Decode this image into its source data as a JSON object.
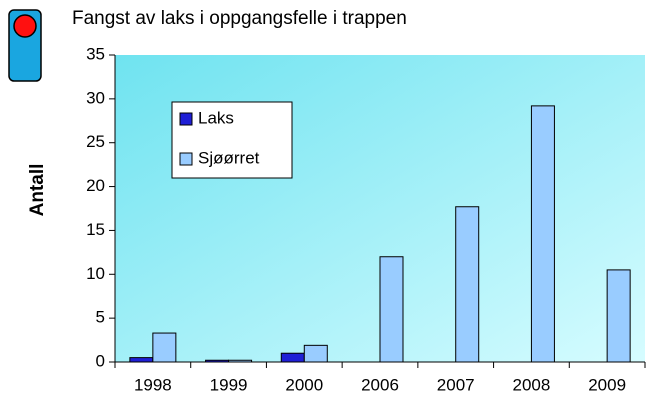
{
  "chart_data": {
    "type": "bar",
    "title": "Fangst av laks i oppgangsfelle i trappen",
    "y_label": "Antall",
    "categories": [
      "1998",
      "1999",
      "2000",
      "2006",
      "2007",
      "2008",
      "2009"
    ],
    "series": [
      {
        "name": "Laks",
        "color": "#1f1fd6",
        "values": [
          0.5,
          0.2,
          1,
          0,
          0,
          0,
          0
        ]
      },
      {
        "name": "Sjøørret",
        "color": "#99ccff",
        "values": [
          3.3,
          0.2,
          1.9,
          12,
          17.7,
          29.2,
          10.5
        ]
      }
    ],
    "ylim": [
      0,
      35
    ],
    "yticks": [
      0,
      5,
      10,
      15,
      20,
      25,
      30,
      35
    ],
    "legend": "upper left"
  }
}
